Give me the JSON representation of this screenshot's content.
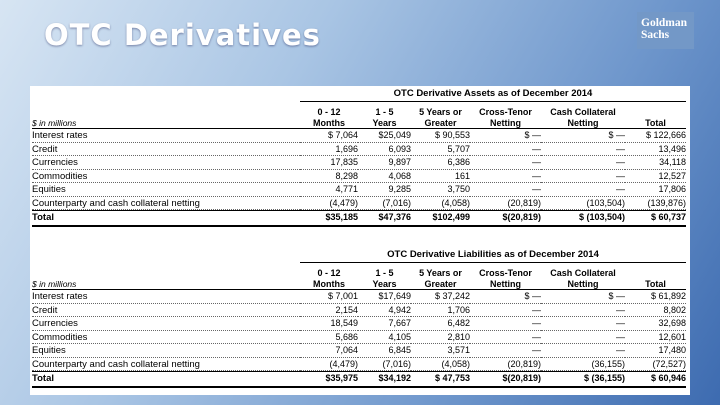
{
  "header": {
    "title": "OTC Derivatives",
    "logo": [
      "Goldman",
      "Sachs"
    ]
  },
  "tables": [
    {
      "caption": "OTC Derivative Assets as of December 2014",
      "units": "$ in millions",
      "columns": [
        [
          "0 - 12",
          "Months"
        ],
        [
          "1 - 5",
          "Years"
        ],
        [
          "5 Years or",
          "Greater"
        ],
        [
          "Cross-Tenor",
          "Netting"
        ],
        [
          "Cash Collateral",
          "Netting"
        ],
        [
          "",
          "Total"
        ]
      ],
      "rows": [
        {
          "label": "Interest rates",
          "cells": [
            "$ 7,064",
            "$25,049",
            "$ 90,553",
            "$ —",
            "$ —",
            "$ 122,666"
          ]
        },
        {
          "label": "Credit",
          "cells": [
            "1,696",
            "6,093",
            "5,707",
            "—",
            "—",
            "13,496"
          ]
        },
        {
          "label": "Currencies",
          "cells": [
            "17,835",
            "9,897",
            "6,386",
            "—",
            "—",
            "34,118"
          ]
        },
        {
          "label": "Commodities",
          "cells": [
            "8,298",
            "4,068",
            "161",
            "—",
            "—",
            "12,527"
          ]
        },
        {
          "label": "Equities",
          "cells": [
            "4,771",
            "9,285",
            "3,750",
            "—",
            "—",
            "17,806"
          ]
        },
        {
          "label": "Counterparty and cash collateral netting",
          "cells": [
            "(4,479)",
            "(7,016)",
            "(4,058)",
            "(20,819)",
            "(103,504)",
            "(139,876)"
          ]
        },
        {
          "label": "Total",
          "cells": [
            "$35,185",
            "$47,376",
            "$102,499",
            "$(20,819)",
            "$ (103,504)",
            "$ 60,737"
          ]
        }
      ]
    },
    {
      "caption": "OTC Derivative Liabilities as of December 2014",
      "units": "$ in millions",
      "columns": [
        [
          "0 - 12",
          "Months"
        ],
        [
          "1 - 5",
          "Years"
        ],
        [
          "5 Years or",
          "Greater"
        ],
        [
          "Cross-Tenor",
          "Netting"
        ],
        [
          "Cash Collateral",
          "Netting"
        ],
        [
          "",
          "Total"
        ]
      ],
      "rows": [
        {
          "label": "Interest rates",
          "cells": [
            "$ 7,001",
            "$17,649",
            "$ 37,242",
            "$ —",
            "$ —",
            "$ 61,892"
          ]
        },
        {
          "label": "Credit",
          "cells": [
            "2,154",
            "4,942",
            "1,706",
            "—",
            "—",
            "8,802"
          ]
        },
        {
          "label": "Currencies",
          "cells": [
            "18,549",
            "7,667",
            "6,482",
            "—",
            "—",
            "32,698"
          ]
        },
        {
          "label": "Commodities",
          "cells": [
            "5,686",
            "4,105",
            "2,810",
            "—",
            "—",
            "12,601"
          ]
        },
        {
          "label": "Equities",
          "cells": [
            "7,064",
            "6,845",
            "3,571",
            "—",
            "—",
            "17,480"
          ]
        },
        {
          "label": "Counterparty and cash collateral netting",
          "cells": [
            "(4,479)",
            "(7,016)",
            "(4,058)",
            "(20,819)",
            "(36,155)",
            "(72,527)"
          ]
        },
        {
          "label": "Total",
          "cells": [
            "$35,975",
            "$34,192",
            "$ 47,753",
            "$(20,819)",
            "$ (36,155)",
            "$ 60,946"
          ]
        }
      ]
    }
  ]
}
